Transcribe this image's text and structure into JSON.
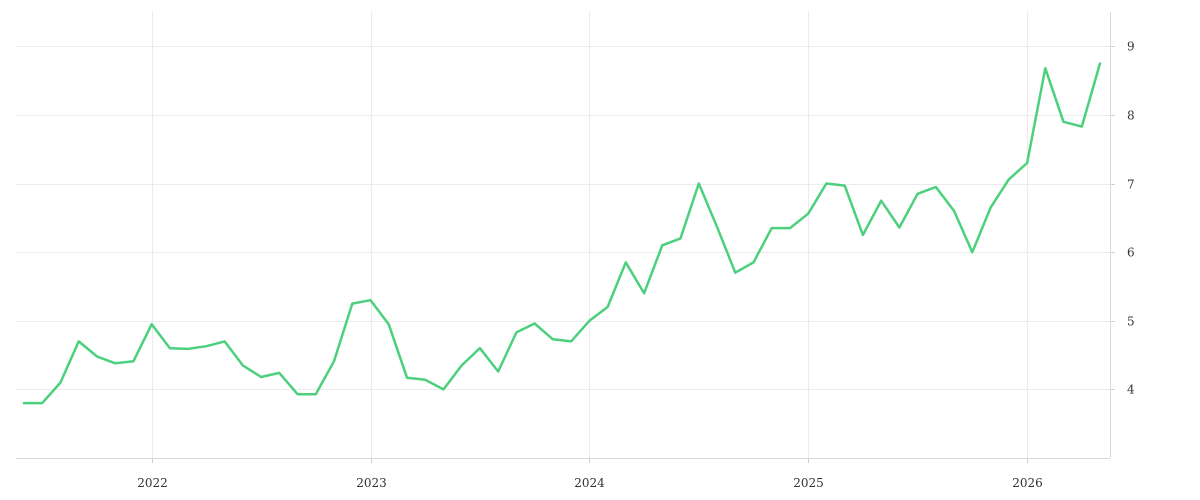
{
  "chart_data": {
    "type": "line",
    "title": "",
    "xlabel": "",
    "ylabel": "",
    "x_tick_labels": [
      "2022",
      "2023",
      "2024",
      "2025",
      "2026"
    ],
    "y_tick_labels": [
      "4",
      "5",
      "6",
      "7",
      "8",
      "9"
    ],
    "xlim": [
      "2021-06",
      "2026-05"
    ],
    "ylim": [
      3.0,
      9.5
    ],
    "grid": true,
    "legend": "none",
    "colors": {
      "series": "#4cd07d",
      "grid": "#ebebeb"
    },
    "x": [
      "2021-06",
      "2021-07",
      "2021-08",
      "2021-09",
      "2021-10",
      "2021-11",
      "2021-12",
      "2022-01",
      "2022-02",
      "2022-03",
      "2022-04",
      "2022-05",
      "2022-06",
      "2022-07",
      "2022-08",
      "2022-09",
      "2022-10",
      "2022-11",
      "2022-12",
      "2023-01",
      "2023-02",
      "2023-03",
      "2023-04",
      "2023-05",
      "2023-06",
      "2023-07",
      "2023-08",
      "2023-09",
      "2023-10",
      "2023-11",
      "2023-12",
      "2024-01",
      "2024-02",
      "2024-03",
      "2024-04",
      "2024-05",
      "2024-06",
      "2024-07",
      "2024-08",
      "2024-09",
      "2024-10",
      "2024-11",
      "2024-12",
      "2025-01",
      "2025-02",
      "2025-03",
      "2025-04",
      "2025-05",
      "2025-06",
      "2025-07",
      "2025-08",
      "2025-09",
      "2025-10",
      "2025-11",
      "2025-12",
      "2026-01",
      "2026-02",
      "2026-03",
      "2026-04",
      "2026-05"
    ],
    "series": [
      {
        "values": [
          3.8,
          3.8,
          4.1,
          4.7,
          4.48,
          4.38,
          4.41,
          4.95,
          4.6,
          4.59,
          4.63,
          4.7,
          4.35,
          4.18,
          4.24,
          3.93,
          3.93,
          4.41,
          5.25,
          5.3,
          4.95,
          4.17,
          4.14,
          4.0,
          4.35,
          4.6,
          4.26,
          4.83,
          4.96,
          4.73,
          4.7,
          5.0,
          5.2,
          5.85,
          5.4,
          6.1,
          6.2,
          7.0,
          6.37,
          5.7,
          5.85,
          6.35,
          6.35,
          6.56,
          7.0,
          6.97,
          6.25,
          6.75,
          6.36,
          6.85,
          6.95,
          6.6,
          6.0,
          6.65,
          7.06,
          7.3,
          8.68,
          7.9,
          7.83,
          8.75
        ]
      }
    ]
  }
}
